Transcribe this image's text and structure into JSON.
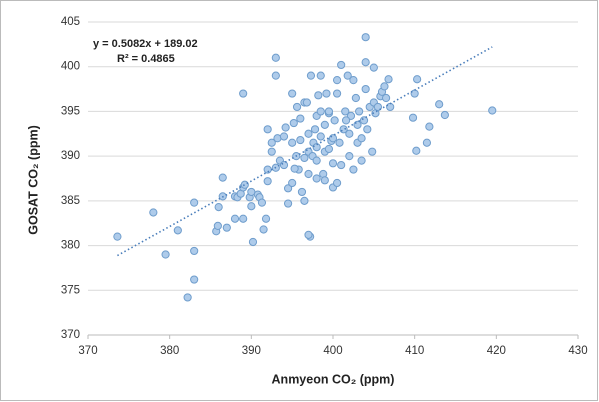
{
  "chart_data": {
    "type": "scatter",
    "x_label": "Anmyeon CO₂ (ppm)",
    "y_label": "GOSAT CO₂ (ppm)",
    "equation": "y = 0.5082x + 189.02",
    "r_squared": "R² = 0.4865",
    "trendline": {
      "slope": 0.5082,
      "intercept": 189.02,
      "color": "#4a7ebb"
    },
    "xlim": [
      370,
      430
    ],
    "xticks": [
      370,
      380,
      390,
      400,
      410,
      420,
      430
    ],
    "ylim": [
      370,
      405
    ],
    "yticks": [
      370,
      375,
      380,
      385,
      390,
      395,
      400,
      405
    ],
    "grid": true,
    "color": "#aecbea",
    "edge_color": "#6f9dcc",
    "x": [
      373.6,
      378,
      379.5,
      381,
      383,
      382.2,
      383,
      383,
      385.7,
      385.9,
      386,
      386.5,
      386.5,
      387,
      388,
      388,
      388.3,
      388.7,
      389,
      389,
      389.2,
      389.8,
      390,
      390,
      390.2,
      390.8,
      391,
      391.3,
      391.5,
      391.8,
      392,
      392,
      392,
      392.5,
      392.5,
      393,
      393,
      393,
      393.2,
      393.5,
      394,
      394,
      394.5,
      394.5,
      395,
      395,
      395,
      395.2,
      395.5,
      395.6,
      395.8,
      396,
      396,
      396.2,
      396.5,
      396.5,
      396.5,
      397,
      397,
      397,
      397.2,
      397.3,
      397.5,
      397.6,
      397.8,
      398,
      398,
      398,
      398.2,
      398.5,
      398.5,
      398.8,
      399,
      399,
      399,
      399.2,
      399.5,
      399.5,
      399.8,
      400,
      400,
      400,
      400.2,
      400.5,
      400.5,
      400.8,
      401,
      401,
      401.3,
      401.5,
      401.8,
      402,
      402,
      402.2,
      402.5,
      402.5,
      402.8,
      403,
      403,
      403.2,
      403.5,
      403.5,
      403.8,
      404,
      404,
      404,
      404.2,
      404.5,
      404.8,
      405,
      405,
      405.2,
      405.5,
      405.8,
      406,
      406.3,
      406.5,
      406.8,
      407,
      401.6,
      389,
      397,
      410,
      410.2,
      410.3,
      409.8,
      411.5,
      411.8,
      413,
      413.7,
      419.5,
      394.2,
      398.5,
      399.5,
      396.8,
      400.5,
      398,
      395.3
    ],
    "values": [
      381,
      383.7,
      379,
      381.7,
      384.8,
      374.2,
      376.2,
      379.4,
      381.6,
      382.2,
      384.3,
      385.5,
      387.6,
      382,
      383,
      385.5,
      385.4,
      385.8,
      386.5,
      383,
      386.8,
      385.4,
      386,
      384.4,
      380.4,
      385.7,
      385.4,
      384.8,
      381.8,
      383,
      388.5,
      387.2,
      393,
      390.5,
      391.5,
      388.7,
      401,
      399,
      392,
      389.5,
      392.2,
      389,
      384.7,
      386.4,
      387,
      391.5,
      397,
      393.7,
      390,
      395.5,
      388.5,
      394.2,
      391.8,
      386,
      385,
      389.8,
      396,
      390.5,
      388,
      392.5,
      381,
      399,
      390,
      391.5,
      393,
      389.5,
      387.5,
      394.5,
      396.8,
      392.2,
      395,
      388,
      390.5,
      387.3,
      393.5,
      397,
      394.8,
      390.8,
      391.7,
      386.5,
      389.2,
      392,
      394,
      397,
      398.5,
      391.5,
      389,
      400.2,
      393,
      395,
      399,
      392.5,
      390,
      394.5,
      388.5,
      398.5,
      396.5,
      393.5,
      391.5,
      395,
      392,
      389.5,
      394,
      400.5,
      403.3,
      397.5,
      393,
      395.5,
      390.5,
      399.9,
      396,
      394.8,
      395.5,
      396.7,
      397.2,
      397.8,
      396.5,
      398.6,
      395.5,
      394,
      397,
      381.2,
      397,
      390.6,
      398.6,
      394.3,
      391.5,
      393.3,
      395.8,
      394.6,
      395.1,
      393.2,
      399,
      395,
      396,
      387,
      391,
      388.6
    ]
  }
}
